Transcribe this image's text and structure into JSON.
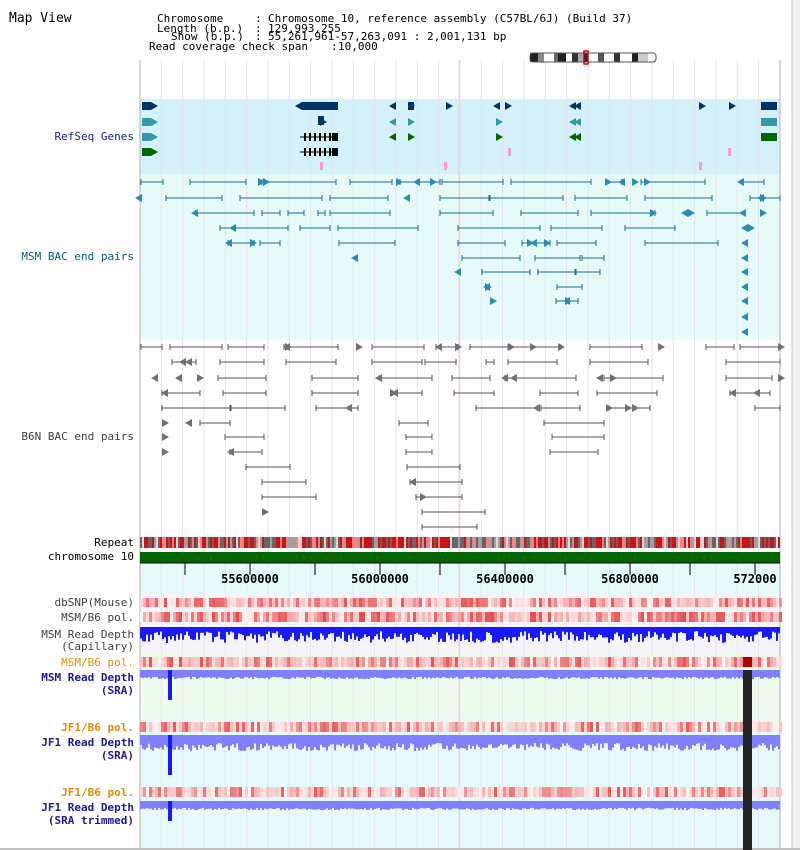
{
  "view_title": "Map View",
  "info": {
    "chromosome_key": "Chromosome",
    "chromosome_val": "Chromosome 10, reference assembly (C57BL/6J) (Build 37)",
    "length_key": "Length (b.p.)",
    "length_val": "129,993,255",
    "show_key": "Show (b.p.)",
    "show_val": "55,261,961-57,263,091 : 2,001,131 bp",
    "coverage_key": "Read coverage check span",
    "coverage_val": "10,000"
  },
  "track_labels": {
    "refseq": "RefSeq Genes",
    "msm_bac": "MSM BAC end pairs",
    "b6n_bac": "B6N BAC end pairs",
    "repeat": "Repeat",
    "chromosome": "chromosome 10",
    "dbsnp": "dbSNP(Mouse)",
    "msm_b6_pol": "MSM/B6 pol.",
    "msm_read_depth_cap_1": "MSM Read Depth",
    "msm_read_depth_cap_2": "(Capillary)",
    "msm_b6_pol_2": "MSM/B6 pol.",
    "msm_read_depth_sra_1": "MSM Read Depth",
    "msm_read_depth_sra_2": "(SRA)",
    "jf1_b6_pol": "JF1/B6 pol.",
    "jf1_read_depth_1": "JF1 Read Depth",
    "jf1_read_depth_2": "(SRA)",
    "jf1_b6_pol_2": "JF1/B6 pol.",
    "jf1_read_depth_t1": "JF1 Read Depth",
    "jf1_read_depth_t2": "(SRA trimmed)"
  },
  "axis": {
    "ticks": [
      "55600000",
      "56000000",
      "56400000",
      "56800000",
      "572000"
    ]
  },
  "colors": {
    "refseq_bg": "#d4f0fa",
    "msm_bg": "#e6fafa",
    "b6n_bg": "#ffffff",
    "sra_bg": "#eefaee",
    "jf1_bg": "#e6fafa",
    "track_label_blue": "#1a1a9a",
    "bac_label_teal": "#006080",
    "pol_label_orange": "#e68c00",
    "depth_blue": "#1a1aff",
    "depth_light": "#8080ff",
    "chromosome_green": "#006400",
    "refseq_dark": "#003366",
    "refseq_teal": "#3399aa",
    "refseq_green": "#006600",
    "refseq_pink": "#ff99cc"
  },
  "icons": [
    "ideogram-icon",
    "scroll-handle-icon",
    "forward-arrow-icon",
    "reverse-arrow-icon"
  ]
}
